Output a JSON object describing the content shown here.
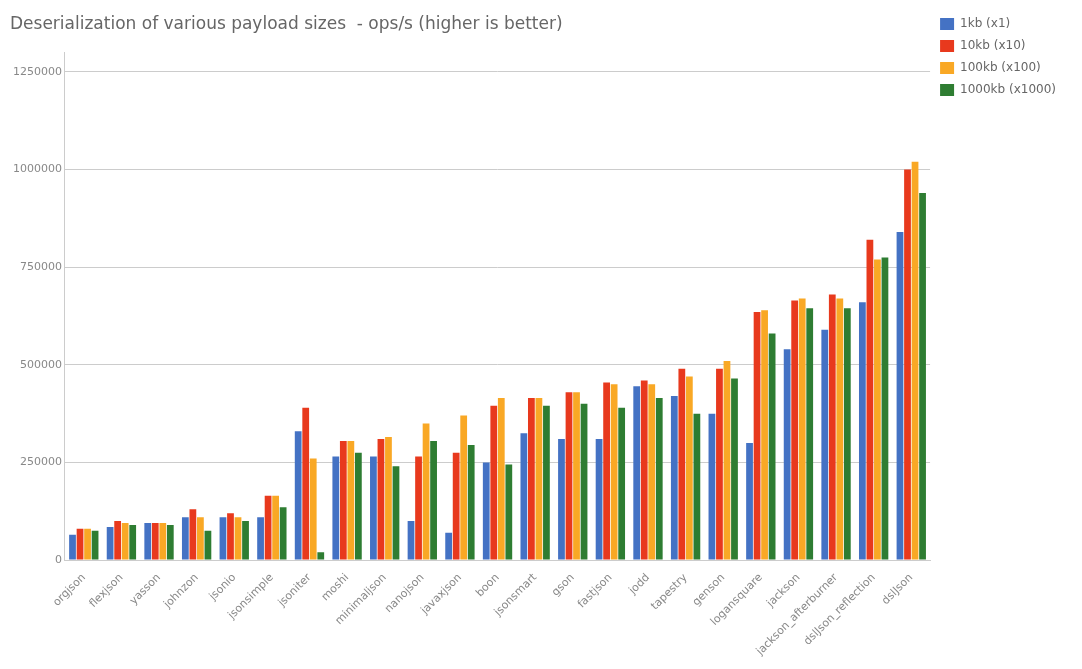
{
  "chart_data": {
    "type": "bar",
    "title": "Deserialization of various payload sizes  - ops/s (higher is better)",
    "categories": [
      "orgjson",
      "flexjson",
      "yasson",
      "johnzon",
      "jsonio",
      "jsonsimple",
      "jsoniter",
      "moshi",
      "minimaljson",
      "nanojson",
      "javaxjson",
      "boon",
      "jsonsmart",
      "gson",
      "fastjson",
      "jodd",
      "tapestry",
      "genson",
      "logansquare",
      "jackson",
      "jackson_afterburner",
      "dslJson_reflection",
      "dslJson"
    ],
    "series": [
      {
        "name": "1kb (x1)",
        "color": "#4472c4",
        "values": [
          65000,
          85000,
          95000,
          110000,
          110000,
          110000,
          330000,
          265000,
          265000,
          100000,
          70000,
          250000,
          325000,
          310000,
          310000,
          445000,
          420000,
          375000,
          300000,
          540000,
          590000,
          660000,
          840000
        ]
      },
      {
        "name": "10kb (x10)",
        "color": "#e8391d",
        "values": [
          80000,
          100000,
          95000,
          130000,
          120000,
          165000,
          390000,
          305000,
          310000,
          265000,
          275000,
          395000,
          415000,
          430000,
          455000,
          460000,
          490000,
          490000,
          635000,
          665000,
          680000,
          820000,
          1000000
        ]
      },
      {
        "name": "100kb (x100)",
        "color": "#f9a825",
        "values": [
          80000,
          95000,
          95000,
          110000,
          110000,
          165000,
          260000,
          305000,
          315000,
          350000,
          370000,
          415000,
          415000,
          430000,
          450000,
          450000,
          470000,
          510000,
          640000,
          670000,
          670000,
          770000,
          1020000
        ]
      },
      {
        "name": "1000kb (x1000)",
        "color": "#2e7d32",
        "values": [
          75000,
          90000,
          90000,
          75000,
          100000,
          135000,
          20000,
          275000,
          240000,
          305000,
          295000,
          245000,
          395000,
          400000,
          390000,
          415000,
          375000,
          465000,
          580000,
          645000,
          645000,
          775000,
          940000
        ]
      }
    ],
    "ylim": [
      0,
      1300000
    ],
    "yticks": [
      0,
      250000,
      500000,
      750000,
      1000000,
      1250000
    ],
    "grid": true,
    "legend": "right"
  }
}
